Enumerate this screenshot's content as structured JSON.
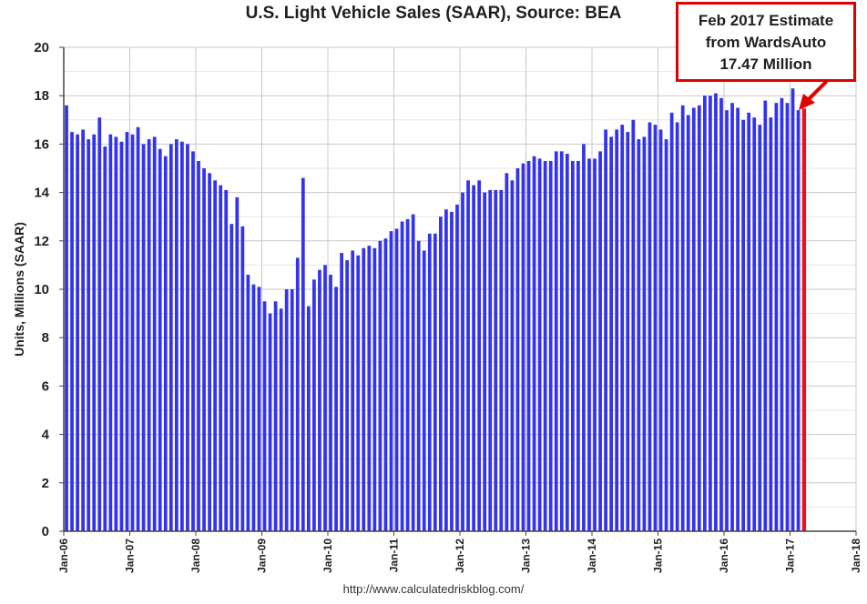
{
  "chart_data": {
    "type": "bar",
    "title": "U.S. Light Vehicle Sales (SAAR), Source: BEA",
    "ylabel": "Units, Millions (SAAR)",
    "xlabel": "",
    "ylim": [
      0,
      20
    ],
    "yticks": [
      "0",
      "2",
      "4",
      "6",
      "8",
      "10",
      "12",
      "14",
      "16",
      "18",
      "20"
    ],
    "xticks": [
      "Jan-06",
      "Jan-07",
      "Jan-08",
      "Jan-09",
      "Jan-10",
      "Jan-11",
      "Jan-12",
      "Jan-13",
      "Jan-14",
      "Jan-15",
      "Jan-16",
      "Jan-17",
      "Jan-18"
    ],
    "grid": true,
    "x_start": "2006-01",
    "bar_color": "#3333ee",
    "estimate_color": "#ee1111",
    "values": [
      17.6,
      16.5,
      16.4,
      16.6,
      16.2,
      16.4,
      17.1,
      15.9,
      16.4,
      16.3,
      16.1,
      16.5,
      16.4,
      16.7,
      16.0,
      16.2,
      16.3,
      15.8,
      15.5,
      16.0,
      16.2,
      16.1,
      16.0,
      15.7,
      15.3,
      15.0,
      14.8,
      14.5,
      14.3,
      14.1,
      12.7,
      13.8,
      12.6,
      10.6,
      10.2,
      10.1,
      9.5,
      9.0,
      9.5,
      9.2,
      10.0,
      10.0,
      11.3,
      14.6,
      9.3,
      10.4,
      10.8,
      11.0,
      10.6,
      10.1,
      11.5,
      11.2,
      11.6,
      11.4,
      11.7,
      11.8,
      11.7,
      12.0,
      12.1,
      12.4,
      12.5,
      12.8,
      12.9,
      13.1,
      12.0,
      11.6,
      12.3,
      12.3,
      13.0,
      13.3,
      13.2,
      13.5,
      14.0,
      14.5,
      14.3,
      14.5,
      14.0,
      14.1,
      14.1,
      14.1,
      14.8,
      14.5,
      15.0,
      15.2,
      15.3,
      15.5,
      15.4,
      15.3,
      15.3,
      15.7,
      15.7,
      15.6,
      15.3,
      15.3,
      16.0,
      15.4,
      15.4,
      15.7,
      16.6,
      16.3,
      16.6,
      16.8,
      16.5,
      17.0,
      16.2,
      16.3,
      16.9,
      16.8,
      16.6,
      16.2,
      17.3,
      16.9,
      17.6,
      17.2,
      17.5,
      17.6,
      18.0,
      18.0,
      18.1,
      17.9,
      17.4,
      17.7,
      17.5,
      17.0,
      17.3,
      17.1,
      16.8,
      17.8,
      17.1,
      17.7,
      17.9,
      17.7,
      18.3,
      17.4
    ],
    "estimate": {
      "label": "Feb 2017",
      "value": 17.47
    }
  },
  "annotation": {
    "line1": "Feb 2017 Estimate",
    "line2": "from WardsAuto",
    "line3": "17.47 Million",
    "border_color": "#e00000"
  },
  "footer": {
    "url": "http://www.calculatedriskblog.com/"
  }
}
